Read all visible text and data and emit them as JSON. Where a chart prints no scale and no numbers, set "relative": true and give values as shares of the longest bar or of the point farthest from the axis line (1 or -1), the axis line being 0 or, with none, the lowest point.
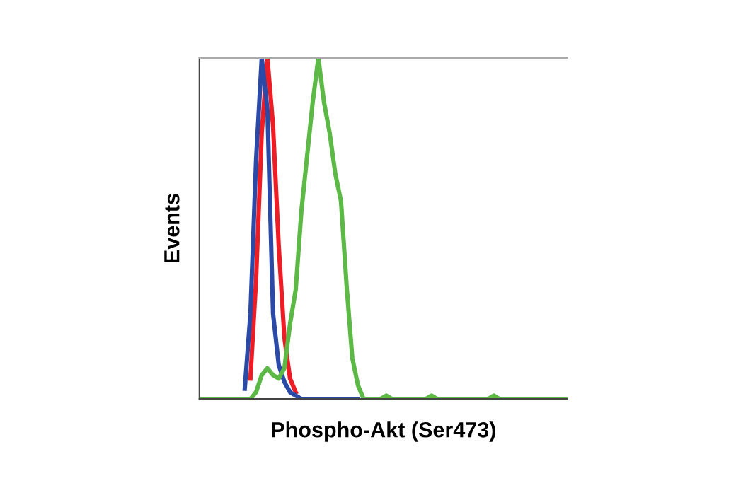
{
  "chart_data": {
    "type": "line",
    "xlabel": "Phospho-Akt (Ser473)",
    "ylabel": "Events",
    "relative": true,
    "categories": [
      null,
      null,
      null,
      null,
      null,
      null,
      null,
      null,
      null,
      null,
      null,
      null,
      null,
      null,
      null,
      null,
      null,
      null,
      null,
      null,
      null,
      null,
      null,
      null,
      null,
      null,
      null,
      null,
      null,
      null,
      null,
      null,
      null,
      null,
      null,
      null,
      null,
      null,
      null,
      null,
      null,
      null,
      null,
      null,
      null,
      null,
      null,
      null,
      null,
      null,
      null,
      null,
      null,
      null,
      null,
      null,
      null,
      null,
      null,
      null,
      null,
      null,
      null,
      null,
      null,
      null
    ],
    "series": [
      {
        "color": "#ee1c25",
        "values": [
          null,
          null,
          null,
          null,
          null,
          null,
          null,
          null,
          null,
          0.06,
          0.35,
          0.78,
          1.0,
          0.8,
          0.45,
          0.18,
          0.06,
          0.02,
          null,
          null,
          null,
          null,
          null,
          null,
          null,
          null,
          null,
          null,
          null,
          null,
          null,
          null,
          null,
          null,
          null,
          null,
          null,
          null,
          null,
          null,
          null,
          null,
          null,
          null,
          null,
          null,
          null,
          null,
          null,
          null,
          null,
          null,
          null,
          null,
          null,
          null,
          null,
          null,
          null,
          null,
          null,
          null,
          null,
          null,
          null,
          null
        ]
      },
      {
        "color": "#2b4aa8",
        "values": [
          null,
          null,
          null,
          null,
          null,
          null,
          null,
          null,
          0.03,
          0.25,
          0.7,
          1.0,
          0.85,
          0.25,
          0.1,
          0.05,
          0.02,
          0.01,
          0,
          0,
          0,
          0,
          0,
          0,
          0,
          0,
          0,
          0,
          0,
          null,
          null,
          null,
          null,
          null,
          null,
          null,
          null,
          null,
          null,
          null,
          null,
          null,
          null,
          null,
          null,
          null,
          null,
          null,
          null,
          null,
          null,
          null,
          null,
          null,
          null,
          null,
          null,
          null,
          null,
          null,
          null,
          null,
          null,
          null,
          null,
          null
        ]
      },
      {
        "color": "#5cb946",
        "values": [
          0,
          0,
          0,
          0,
          0,
          0,
          0,
          0,
          0,
          0,
          0.02,
          0.07,
          0.09,
          0.07,
          0.06,
          0.09,
          0.22,
          0.32,
          0.55,
          0.71,
          0.87,
          1.0,
          0.87,
          0.78,
          0.66,
          0.58,
          0.33,
          0.12,
          0.04,
          0,
          0,
          0,
          0,
          0.01,
          0,
          0,
          0,
          0,
          0,
          0,
          0,
          0.01,
          0,
          0,
          0,
          0,
          0,
          0,
          0,
          0,
          0,
          0,
          0.01,
          0,
          0,
          0,
          0,
          0,
          0,
          0,
          0,
          0,
          0,
          0,
          0,
          0
        ]
      }
    ]
  }
}
